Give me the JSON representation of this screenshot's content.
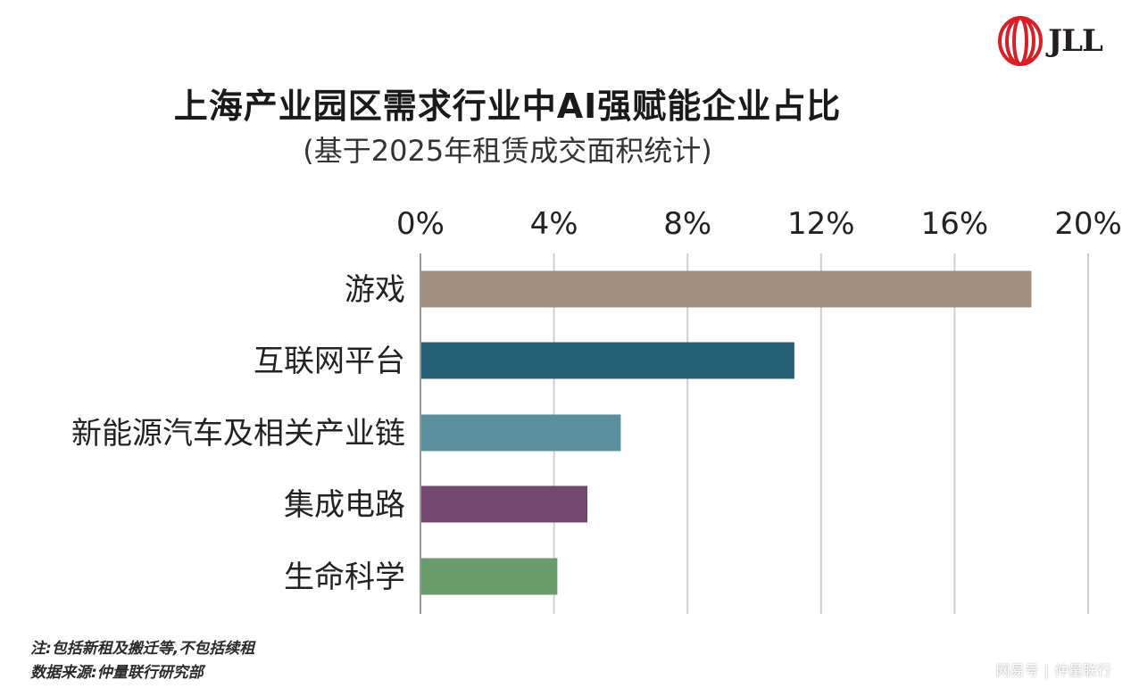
{
  "brand": {
    "logo_text": "JLL"
  },
  "header": {
    "title": "上海产业园区需求行业中AI强赋能企业占比",
    "subtitle": "(基于2025年租赁成交面积统计)"
  },
  "chart_data": {
    "type": "bar",
    "orientation": "horizontal",
    "x_axis_position": "top",
    "categories": [
      "游戏",
      "互联网平台",
      "新能源汽车及相关产业链",
      "集成电路",
      "生命科学"
    ],
    "values": [
      18.3,
      11.2,
      6.0,
      5.0,
      4.1
    ],
    "colors": [
      "#a39081",
      "#245f73",
      "#5a8f9e",
      "#734870",
      "#6a9b6a"
    ],
    "xlim": [
      0,
      20
    ],
    "tick_values": [
      0,
      4,
      8,
      12,
      16,
      20
    ],
    "tick_labels": [
      "0%",
      "4%",
      "8%",
      "12%",
      "16%",
      "20%"
    ],
    "grid": true,
    "title": "上海产业园区需求行业中AI强赋能企业占比",
    "subtitle": "(基于2025年租赁成交面积统计)"
  },
  "notes": {
    "note": "注:包括新租及搬迁等,不包括续租",
    "source": "数据来源:仲量联行研究部"
  },
  "footer": {
    "platform": "网易号",
    "author": "仲量联行"
  }
}
